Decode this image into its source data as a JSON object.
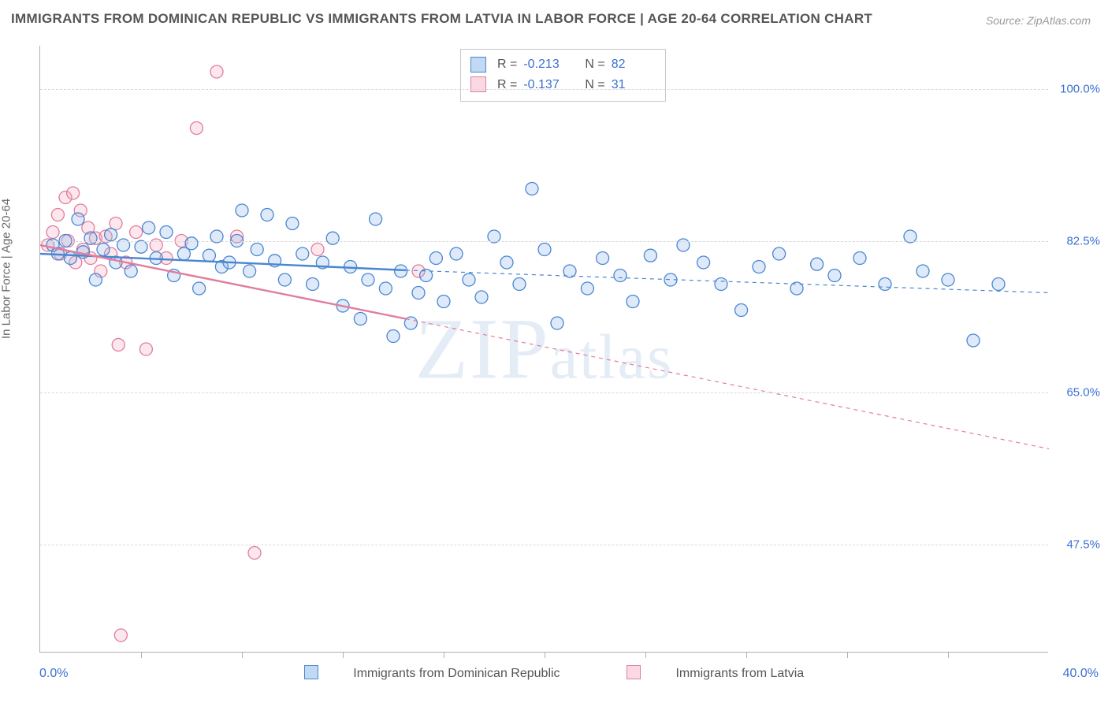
{
  "title": "IMMIGRANTS FROM DOMINICAN REPUBLIC VS IMMIGRANTS FROM LATVIA IN LABOR FORCE | AGE 20-64 CORRELATION CHART",
  "source": "Source: ZipAtlas.com",
  "ylabel": "In Labor Force | Age 20-64",
  "watermark": "ZIPatlas",
  "chart": {
    "type": "scatter",
    "xlim": [
      0,
      40
    ],
    "ylim": [
      35,
      105
    ],
    "x_tick_step": 4,
    "x_axis_left_label": "0.0%",
    "x_axis_right_label": "40.0%",
    "y_ticks": [
      {
        "value": 100.0,
        "label": "100.0%"
      },
      {
        "value": 82.5,
        "label": "82.5%"
      },
      {
        "value": 65.0,
        "label": "65.0%"
      },
      {
        "value": 47.5,
        "label": "47.5%"
      }
    ],
    "background_color": "#ffffff",
    "grid_color": "#d8d8d8",
    "marker_radius": 8,
    "marker_fill_opacity": 0.28,
    "marker_stroke_width": 1.3,
    "line_width_solid": 2.4,
    "line_width_dashed": 1.2,
    "dash_pattern": "5,5"
  },
  "series": {
    "blue": {
      "label": "Immigrants from Dominican Republic",
      "color_fill": "#87b3e8",
      "color_stroke": "#4a86d0",
      "trend_solid": {
        "x1": 0,
        "y1": 81.0,
        "x2": 14.5,
        "y2": 79.1
      },
      "trend_dash_end": {
        "x": 40,
        "y": 76.5
      },
      "stats": {
        "R": "-0.213",
        "N": "82"
      },
      "points": [
        [
          0.5,
          82.0
        ],
        [
          0.7,
          81.0
        ],
        [
          1.0,
          82.5
        ],
        [
          1.2,
          80.5
        ],
        [
          1.5,
          85.0
        ],
        [
          1.7,
          81.2
        ],
        [
          2.0,
          82.8
        ],
        [
          2.2,
          78.0
        ],
        [
          2.5,
          81.5
        ],
        [
          2.8,
          83.2
        ],
        [
          3.0,
          80.0
        ],
        [
          3.3,
          82.0
        ],
        [
          3.6,
          79.0
        ],
        [
          4.0,
          81.8
        ],
        [
          4.3,
          84.0
        ],
        [
          4.6,
          80.5
        ],
        [
          5.0,
          83.5
        ],
        [
          5.3,
          78.5
        ],
        [
          5.7,
          81.0
        ],
        [
          6.0,
          82.2
        ],
        [
          6.3,
          77.0
        ],
        [
          6.7,
          80.8
        ],
        [
          7.0,
          83.0
        ],
        [
          7.2,
          79.5
        ],
        [
          7.5,
          80.0
        ],
        [
          7.8,
          82.5
        ],
        [
          8.0,
          86.0
        ],
        [
          8.3,
          79.0
        ],
        [
          8.6,
          81.5
        ],
        [
          9.0,
          85.5
        ],
        [
          9.3,
          80.2
        ],
        [
          9.7,
          78.0
        ],
        [
          10.0,
          84.5
        ],
        [
          10.4,
          81.0
        ],
        [
          10.8,
          77.5
        ],
        [
          11.2,
          80.0
        ],
        [
          11.6,
          82.8
        ],
        [
          12.0,
          75.0
        ],
        [
          12.3,
          79.5
        ],
        [
          12.7,
          73.5
        ],
        [
          13.0,
          78.0
        ],
        [
          13.3,
          85.0
        ],
        [
          13.7,
          77.0
        ],
        [
          14.0,
          71.5
        ],
        [
          14.3,
          79.0
        ],
        [
          14.7,
          73.0
        ],
        [
          15.0,
          76.5
        ],
        [
          15.3,
          78.5
        ],
        [
          15.7,
          80.5
        ],
        [
          16.0,
          75.5
        ],
        [
          16.5,
          81.0
        ],
        [
          17.0,
          78.0
        ],
        [
          17.5,
          76.0
        ],
        [
          18.0,
          83.0
        ],
        [
          18.5,
          80.0
        ],
        [
          19.0,
          77.5
        ],
        [
          19.5,
          88.5
        ],
        [
          20.0,
          81.5
        ],
        [
          20.5,
          73.0
        ],
        [
          21.0,
          79.0
        ],
        [
          21.7,
          77.0
        ],
        [
          22.3,
          80.5
        ],
        [
          23.0,
          78.5
        ],
        [
          23.5,
          75.5
        ],
        [
          24.2,
          80.8
        ],
        [
          25.0,
          78.0
        ],
        [
          25.5,
          82.0
        ],
        [
          26.3,
          80.0
        ],
        [
          27.0,
          77.5
        ],
        [
          27.8,
          74.5
        ],
        [
          28.5,
          79.5
        ],
        [
          29.3,
          81.0
        ],
        [
          30.0,
          77.0
        ],
        [
          30.8,
          79.8
        ],
        [
          31.5,
          78.5
        ],
        [
          32.5,
          80.5
        ],
        [
          33.5,
          77.5
        ],
        [
          34.5,
          83.0
        ],
        [
          35.0,
          79.0
        ],
        [
          36.0,
          78.0
        ],
        [
          37.0,
          71.0
        ],
        [
          38.0,
          77.5
        ]
      ]
    },
    "pink": {
      "label": "Immigrants from Latvia",
      "color_fill": "#f4aabc",
      "color_stroke": "#e07d9e",
      "trend_solid": {
        "x1": 0,
        "y1": 82.0,
        "x2": 14.5,
        "y2": 73.5
      },
      "trend_dash_end": {
        "x": 40,
        "y": 58.5
      },
      "stats": {
        "R": "-0.137",
        "N": "31"
      },
      "points": [
        [
          0.3,
          82.0
        ],
        [
          0.5,
          83.5
        ],
        [
          0.7,
          85.5
        ],
        [
          0.8,
          81.0
        ],
        [
          1.0,
          87.5
        ],
        [
          1.1,
          82.5
        ],
        [
          1.3,
          88.0
        ],
        [
          1.4,
          80.0
        ],
        [
          1.6,
          86.0
        ],
        [
          1.7,
          81.5
        ],
        [
          1.9,
          84.0
        ],
        [
          2.0,
          80.5
        ],
        [
          2.2,
          82.8
        ],
        [
          2.4,
          79.0
        ],
        [
          2.6,
          83.0
        ],
        [
          2.8,
          81.0
        ],
        [
          3.0,
          84.5
        ],
        [
          3.1,
          70.5
        ],
        [
          3.2,
          37.0
        ],
        [
          3.4,
          80.0
        ],
        [
          3.8,
          83.5
        ],
        [
          4.2,
          70.0
        ],
        [
          4.6,
          82.0
        ],
        [
          5.0,
          80.5
        ],
        [
          5.6,
          82.5
        ],
        [
          6.2,
          95.5
        ],
        [
          7.0,
          102.0
        ],
        [
          7.8,
          83.0
        ],
        [
          8.5,
          46.5
        ],
        [
          11.0,
          81.5
        ],
        [
          15.0,
          79.0
        ]
      ]
    }
  },
  "stat_labels": {
    "R": "R =",
    "N": "N ="
  }
}
